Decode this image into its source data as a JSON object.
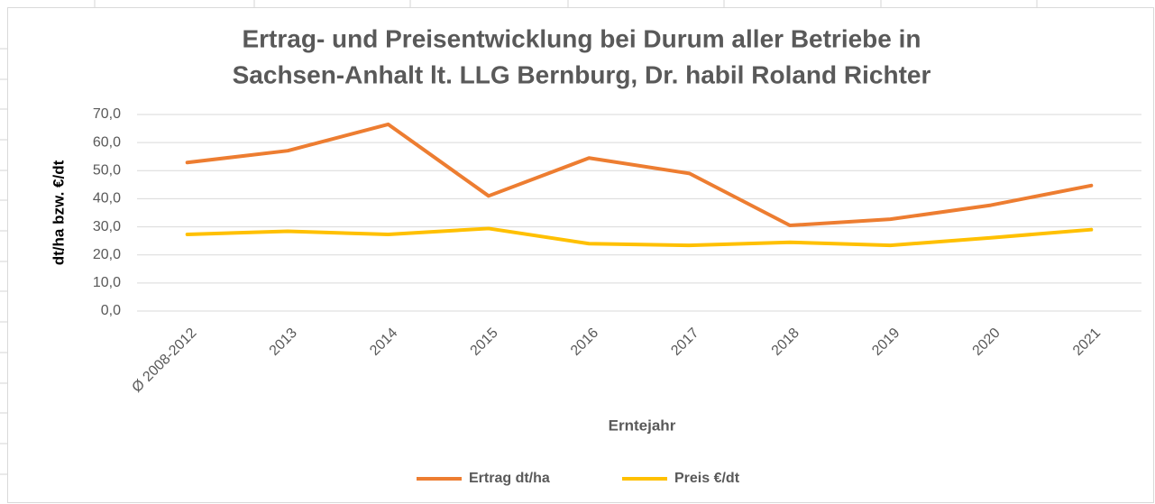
{
  "chart_data": {
    "type": "line",
    "title": [
      "Ertrag- und Preisentwicklung bei Durum aller Betriebe in",
      "Sachsen-Anhalt lt. LLG Bernburg, Dr. habil Roland Richter"
    ],
    "ylabel": "dt/ha bzw. €/dt",
    "xlabel": "Erntejahr",
    "categories": [
      "Ø 2008-2012",
      "2013",
      "2014",
      "2015",
      "2016",
      "2017",
      "2018",
      "2019",
      "2020",
      "2021"
    ],
    "series": [
      {
        "name": "Ertrag dt/ha",
        "color": "#ED7D31",
        "values": [
          52.9,
          57.1,
          66.5,
          41.0,
          54.5,
          49.0,
          30.5,
          32.7,
          37.7,
          44.7
        ]
      },
      {
        "name": "Preis €/dt",
        "color": "#FFC000",
        "values": [
          27.3,
          28.4,
          27.3,
          29.4,
          24.0,
          23.4,
          24.5,
          23.4,
          26.1,
          29.0
        ]
      }
    ],
    "ylim": [
      0,
      70
    ],
    "yticks": [
      {
        "value": 0,
        "label": "0,0"
      },
      {
        "value": 10,
        "label": "10,0"
      },
      {
        "value": 20,
        "label": "20,0"
      },
      {
        "value": 30,
        "label": "30,0"
      },
      {
        "value": 40,
        "label": "40,0"
      },
      {
        "value": 50,
        "label": "50,0"
      },
      {
        "value": 60,
        "label": "60,0"
      },
      {
        "value": 70,
        "label": "70,0"
      }
    ],
    "grid": true,
    "legend": "bottom"
  }
}
